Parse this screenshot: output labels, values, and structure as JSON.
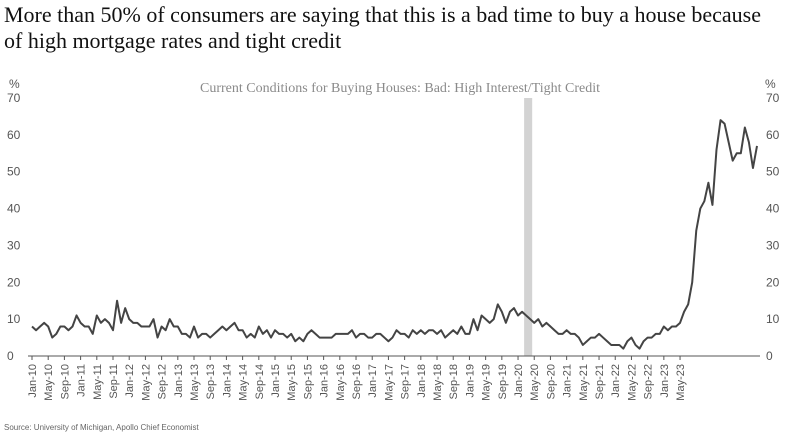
{
  "headline": "More than 50% of consumers are saying that this is a bad time to buy a house because of high mortgage rates and tight credit",
  "source": "Source: University of Michigan, Apollo Chief Economist",
  "colors": {
    "line": "#444444",
    "shade": "#d3d3d3"
  },
  "chart_data": {
    "type": "line",
    "title": "Current Conditions for Buying Houses: Bad: High Interest/Tight Credit",
    "ylabel_left": "%",
    "ylabel_right": "%",
    "ylim": [
      0,
      70
    ],
    "yticks": [
      "0",
      "10",
      "20",
      "30",
      "40",
      "50",
      "60",
      "70"
    ],
    "grid": false,
    "x_start": "Jan-10",
    "xticks": [
      "Jan-10",
      "May-10",
      "Sep-10",
      "Jan-11",
      "May-11",
      "Sep-11",
      "Jan-12",
      "May-12",
      "Sep-12",
      "Jan-13",
      "May-13",
      "Sep-13",
      "Jan-14",
      "May-14",
      "Sep-14",
      "Jan-15",
      "May-15",
      "Sep-15",
      "Jan-16",
      "May-16",
      "Sep-16",
      "Jan-17",
      "May-17",
      "Sep-17",
      "Jan-18",
      "May-18",
      "Sep-18",
      "Jan-19",
      "May-19",
      "Sep-19",
      "Jan-20",
      "May-20",
      "Sep-20",
      "Jan-21",
      "May-21",
      "Sep-21",
      "Jan-22",
      "May-22",
      "Sep-22",
      "Jan-23",
      "May-23"
    ],
    "shaded_periods": [
      {
        "start": "Mar-20",
        "end": "Apr-20"
      }
    ],
    "series": [
      {
        "values": [
          8,
          7,
          8,
          9,
          8,
          5,
          6,
          8,
          8,
          7,
          8,
          11,
          9,
          8,
          8,
          6,
          11,
          9,
          10,
          9,
          7,
          15,
          9,
          13,
          10,
          9,
          9,
          8,
          8,
          8,
          10,
          5,
          8,
          7,
          10,
          8,
          8,
          6,
          6,
          5,
          8,
          5,
          6,
          6,
          5,
          6,
          7,
          8,
          7,
          8,
          9,
          7,
          7,
          5,
          6,
          5,
          8,
          6,
          7,
          5,
          7,
          6,
          6,
          5,
          6,
          4,
          5,
          4,
          6,
          7,
          6,
          5,
          5,
          5,
          5,
          6,
          6,
          6,
          6,
          7,
          5,
          6,
          6,
          5,
          5,
          6,
          6,
          5,
          4,
          5,
          7,
          6,
          6,
          5,
          7,
          6,
          7,
          6,
          7,
          7,
          6,
          7,
          5,
          6,
          7,
          6,
          8,
          6,
          6,
          10,
          7,
          11,
          10,
          9,
          10,
          14,
          12,
          9,
          12,
          13,
          11,
          12,
          11,
          10,
          9,
          10,
          8,
          9,
          8,
          7,
          6,
          6,
          7,
          6,
          6,
          5,
          3,
          4,
          5,
          5,
          6,
          5,
          4,
          3,
          3,
          3,
          2,
          4,
          5,
          3,
          2,
          4,
          5,
          5,
          6,
          6,
          8,
          7,
          8,
          8,
          9,
          12,
          14,
          20,
          34,
          40,
          42,
          47,
          41,
          56,
          64,
          63,
          58,
          53,
          55,
          55,
          62,
          58,
          51,
          57
        ]
      }
    ]
  }
}
